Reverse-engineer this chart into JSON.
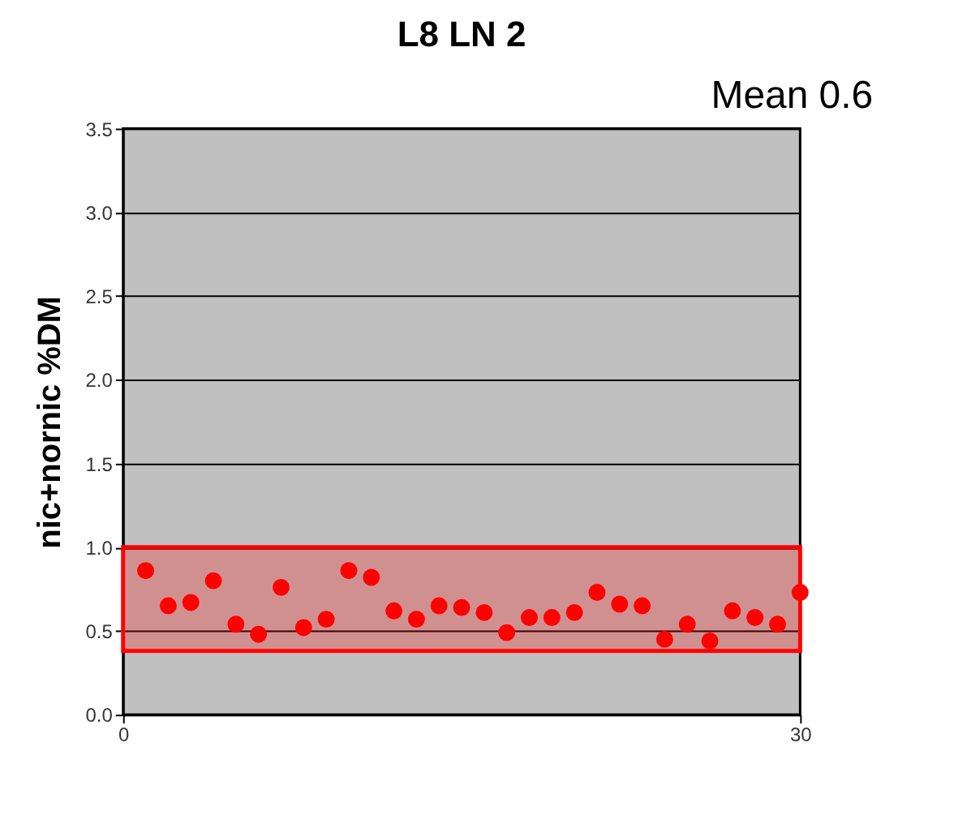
{
  "chart_data": {
    "type": "scatter",
    "title": "L8 LN 2",
    "ylabel": "nic+nornic %DM",
    "annotations": [
      "Mean 0.6"
    ],
    "x": [
      1,
      2,
      3,
      4,
      5,
      6,
      7,
      8,
      9,
      10,
      11,
      12,
      13,
      14,
      15,
      16,
      17,
      18,
      19,
      20,
      21,
      22,
      23,
      24,
      25,
      26,
      27,
      28,
      29,
      30
    ],
    "series": [
      {
        "color": "#ff0000",
        "values": [
          0.86,
          0.65,
          0.67,
          0.8,
          0.54,
          0.48,
          0.76,
          0.52,
          0.57,
          0.86,
          0.82,
          0.62,
          0.57,
          0.65,
          0.64,
          0.61,
          0.49,
          0.58,
          0.58,
          0.61,
          0.73,
          0.66,
          0.65,
          0.45,
          0.54,
          0.44,
          0.62,
          0.58,
          0.54,
          0.73
        ]
      }
    ],
    "xlim": [
      0,
      30
    ],
    "xticks": [
      0,
      30
    ],
    "ylim": [
      0,
      3.5
    ],
    "yticks": [
      {
        "value": 0,
        "label": "0.0"
      },
      {
        "value": 0.5,
        "label": "0.5"
      },
      {
        "value": 1,
        "label": "1.0"
      },
      {
        "value": 1.5,
        "label": "1.5"
      },
      {
        "value": 2,
        "label": "2.0"
      },
      {
        "value": 2.5,
        "label": "2.5"
      },
      {
        "value": 3,
        "label": "3.0"
      },
      {
        "value": 3.5,
        "label": "3.5"
      }
    ],
    "bands": [
      {
        "axis": "y",
        "from": 0.38,
        "to": 1.0,
        "color": "#ff0000"
      }
    ],
    "grid": "y",
    "marker": "circle",
    "legend": false
  }
}
